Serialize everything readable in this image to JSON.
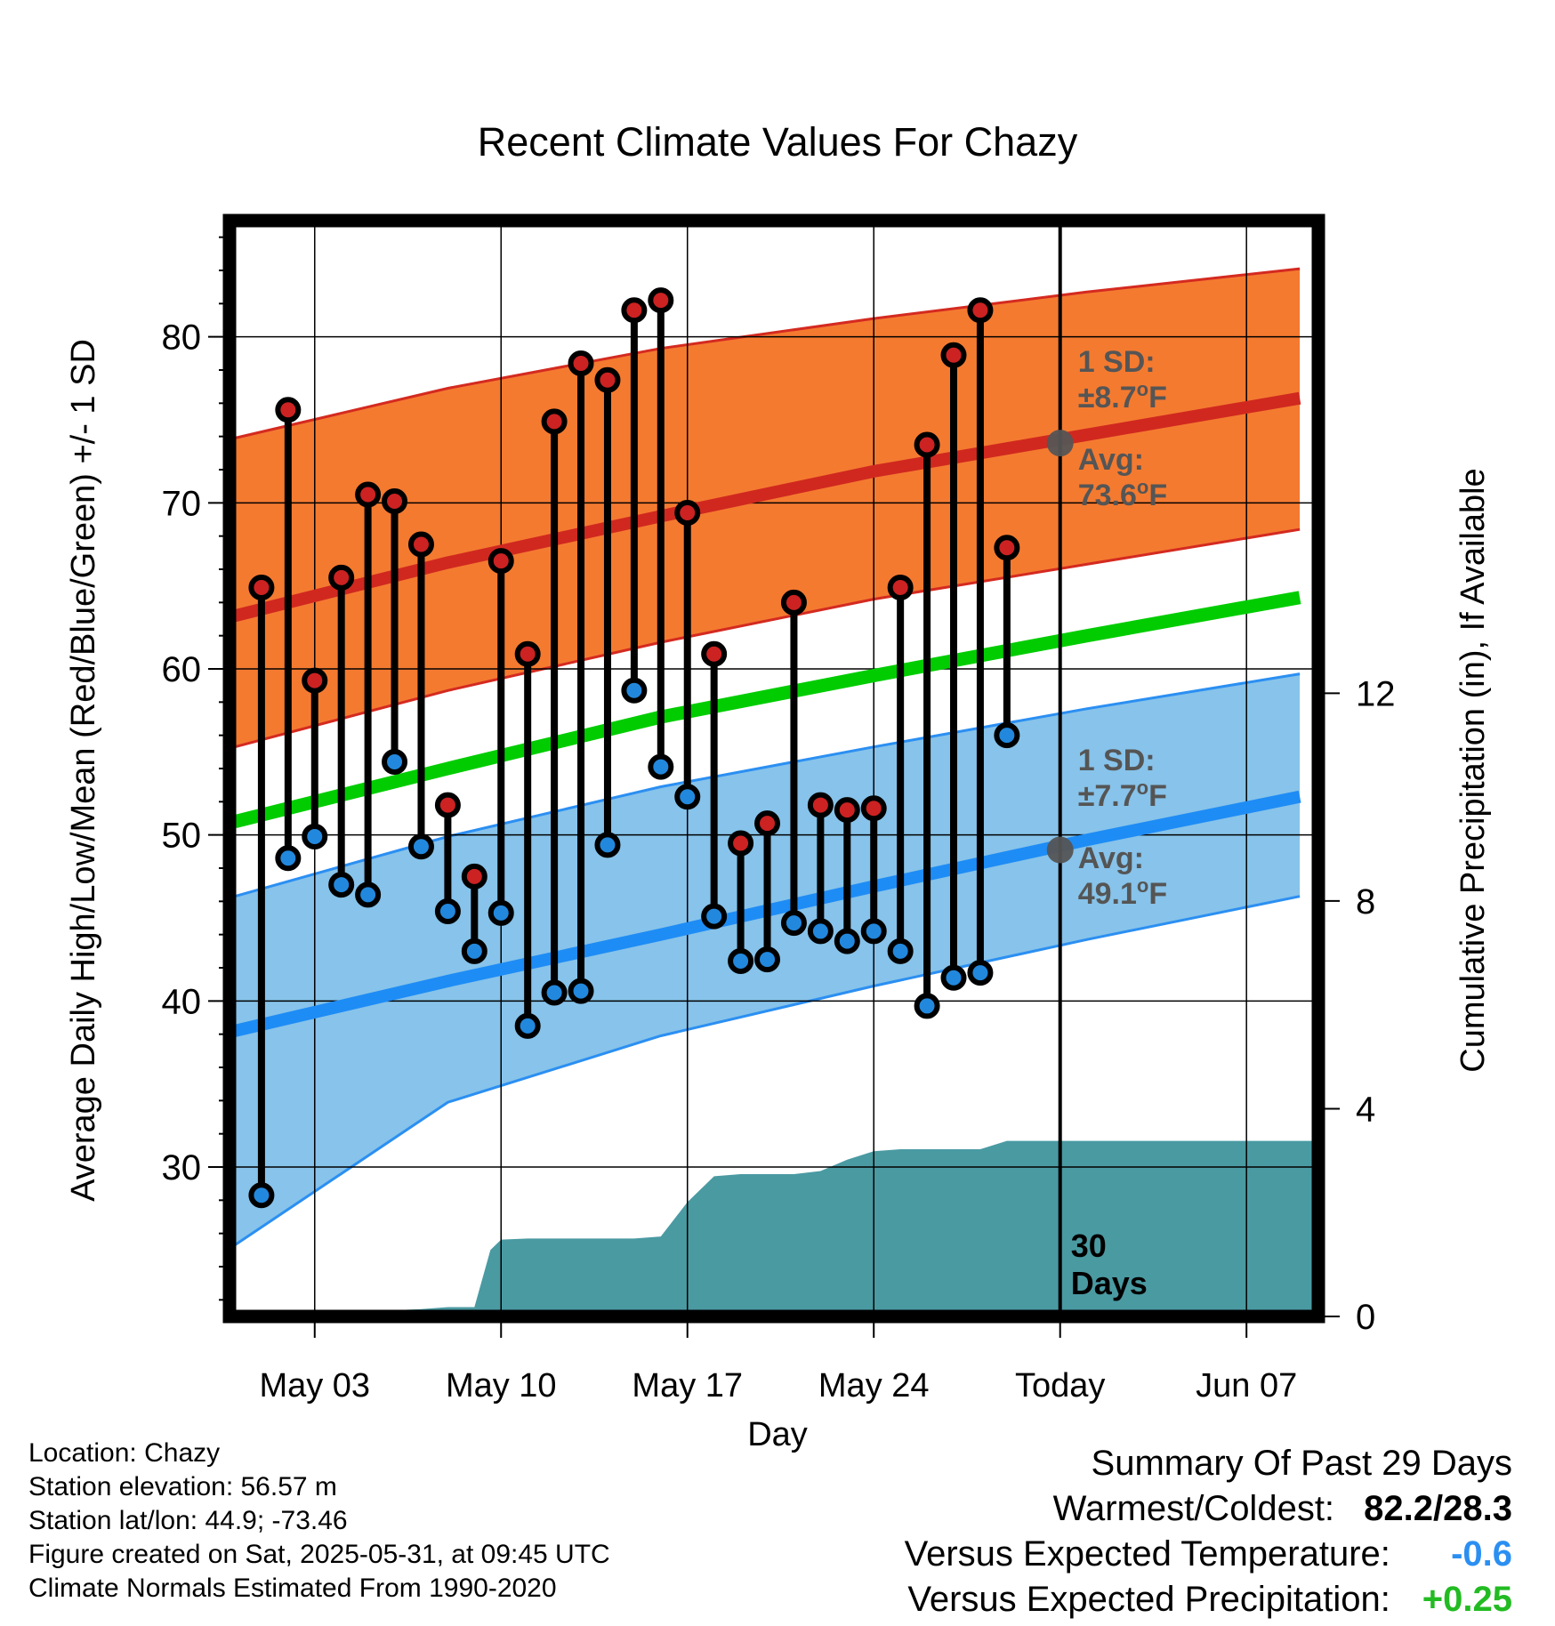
{
  "chart_data": {
    "type": "line",
    "title": "Recent Climate Values For Chazy",
    "xlabel": "Day",
    "ylabel": "Average Daily High/Low/Mean (Red/Blue/Green) +/- 1 SD",
    "y2label": "Cumulative Precipitation (in), If Available",
    "x_tick_labels": [
      "May 03",
      "May 10",
      "May 17",
      "May 24",
      "Today",
      "Jun 07"
    ],
    "x_tick_days": [
      3,
      10,
      17,
      24,
      31,
      38
    ],
    "y_ticks": [
      30,
      40,
      50,
      60,
      70,
      80
    ],
    "y2_ticks": [
      0,
      4,
      8,
      12
    ],
    "ylim": [
      21,
      87
    ],
    "y2lim": [
      0,
      21.1
    ],
    "xlim": [
      -0.2,
      40.7
    ],
    "today_day": 31,
    "today_marker_label": "30\nDays",
    "normals": {
      "day": [
        0,
        8,
        16,
        24,
        32,
        40
      ],
      "high_avg": [
        63.2,
        66.4,
        69.2,
        71.9,
        74.1,
        76.3
      ],
      "high_sd_upper": [
        73.9,
        76.9,
        79.3,
        81.1,
        82.7,
        84.1
      ],
      "high_sd_lower": [
        55.3,
        58.7,
        61.6,
        64.2,
        66.3,
        68.4
      ],
      "mean_avg": [
        50.8,
        54.0,
        57.1,
        59.6,
        62.0,
        64.3
      ],
      "low_avg": [
        38.2,
        41.2,
        44.0,
        46.9,
        49.7,
        52.3
      ],
      "low_sd_upper": [
        46.3,
        49.9,
        52.9,
        55.3,
        57.6,
        59.7
      ],
      "low_sd_lower": [
        25.3,
        33.9,
        37.9,
        40.9,
        43.7,
        46.3
      ]
    },
    "high_annotation": {
      "sd_label": "1 SD:",
      "sd_value": "±8.7",
      "avg_label": "Avg:",
      "avg_value": "73.6",
      "avg": 73.6,
      "unit": "F",
      "degree_mark": "o"
    },
    "low_annotation": {
      "sd_label": "1 SD:",
      "sd_value": "±7.7",
      "avg_label": "Avg:",
      "avg_value": "49.1",
      "avg": 49.1,
      "unit": "F",
      "degree_mark": "o"
    },
    "series": [
      {
        "name": "High",
        "day": [
          1,
          2,
          3,
          4,
          5,
          6,
          7,
          8,
          9,
          10,
          11,
          12,
          13,
          14,
          15,
          16,
          17,
          18,
          19,
          20,
          21,
          22,
          23,
          24,
          25,
          26,
          27,
          28,
          29
        ],
        "values": [
          64.9,
          75.6,
          59.3,
          65.5,
          70.5,
          70.1,
          67.5,
          51.8,
          47.5,
          66.5,
          60.9,
          74.9,
          78.4,
          77.4,
          81.6,
          82.2,
          69.4,
          60.9,
          49.5,
          50.7,
          64.0,
          51.8,
          51.5,
          51.6,
          64.9,
          73.5,
          78.9,
          81.6,
          67.3
        ]
      },
      {
        "name": "Low",
        "day": [
          1,
          2,
          3,
          4,
          5,
          6,
          7,
          8,
          9,
          10,
          11,
          12,
          13,
          14,
          15,
          16,
          17,
          18,
          19,
          20,
          21,
          22,
          23,
          24,
          25,
          26,
          27,
          28,
          29
        ],
        "values": [
          28.3,
          48.6,
          49.9,
          47.0,
          46.4,
          54.4,
          49.3,
          45.4,
          43.0,
          45.3,
          38.5,
          40.5,
          40.6,
          49.4,
          58.7,
          54.1,
          52.3,
          45.1,
          42.4,
          42.5,
          44.7,
          44.2,
          43.6,
          44.2,
          43.0,
          39.7,
          41.4,
          41.7,
          56.0
        ]
      }
    ],
    "precipitation": {
      "day": [
        0,
        1,
        1.9,
        3,
        6,
        7,
        8,
        9,
        9.6,
        10,
        11,
        12,
        13,
        14,
        15,
        16,
        17,
        18,
        19,
        20,
        21,
        22,
        23,
        24,
        25,
        26,
        27,
        28,
        29,
        30,
        31,
        32,
        40.7
      ],
      "values": [
        0,
        0,
        0.05,
        0.12,
        0.12,
        0.14,
        0.18,
        0.18,
        1.28,
        1.48,
        1.5,
        1.5,
        1.5,
        1.5,
        1.5,
        1.54,
        2.2,
        2.7,
        2.74,
        2.74,
        2.74,
        2.8,
        3.02,
        3.18,
        3.22,
        3.22,
        3.22,
        3.22,
        3.38,
        3.38,
        3.38,
        3.38,
        3.38
      ]
    },
    "colors": {
      "high_band": "#f47a30",
      "high_edge": "#d42a20",
      "high_avg": "#d0281f",
      "low_band": "#87c3ea",
      "low_edge": "#2b8ff2",
      "low_avg": "#1e8cf5",
      "mean_avg": "#00cc00",
      "high_dot": "#cc2222",
      "low_dot": "#2288dd",
      "precip": "#4a9aa2",
      "annotation": "#555555"
    }
  },
  "info": {
    "location": "Location: Chazy",
    "elevation": "Station elevation: 56.57 m",
    "latlon": "Station lat/lon: 44.9; -73.46",
    "created": "Figure created on Sat, 2025-05-31, at 09:45 UTC",
    "normals": "Climate Normals Estimated From 1990-2020"
  },
  "summary": {
    "title": "Summary Of Past 29 Days",
    "warmest_label": "Warmest/Coldest:",
    "warmest_value": "82.2/28.3",
    "temp_label": "Versus Expected Temperature:",
    "temp_value": "-0.6",
    "temp_color": "#2b8ff2",
    "precip_label": "Versus Expected Precipitation:",
    "precip_value": "+0.25",
    "precip_color": "#22bb22"
  }
}
